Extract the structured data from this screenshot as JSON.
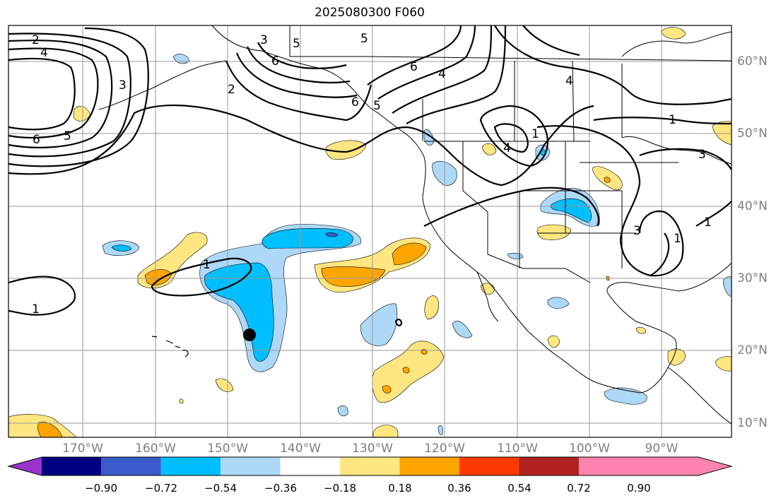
{
  "title": "2025080300 F060",
  "lon_labels": [
    "170°W",
    "160°W",
    "150°W",
    "140°W",
    "130°W",
    "120°W",
    "110°W",
    "100°W",
    "90°W"
  ],
  "lat_labels": [
    "60°N",
    "50°N",
    "40°N",
    "30°N",
    "20°N",
    "10°N"
  ],
  "colorbar": {
    "ticks": [
      "−0.90",
      "−0.72",
      "−0.54",
      "−0.36",
      "−0.18",
      "0.18",
      "0.36",
      "0.54",
      "0.72",
      "0.90"
    ],
    "colors": [
      "#9933cc",
      "#000080",
      "#3a5bcc",
      "#00bfff",
      "#add8f7",
      "#ffffff",
      "#ffe680",
      "#ffa500",
      "#ff3a00",
      "#b22222",
      "#ff85b0"
    ]
  },
  "contour_labels": [
    "2",
    "4",
    "6",
    "5",
    "3",
    "2",
    "3",
    "5",
    "6",
    "6",
    "4",
    "5",
    "4",
    "1",
    "1",
    "3",
    "3",
    "1",
    "1",
    "1",
    "6",
    "5",
    "1",
    "4"
  ],
  "colors": {
    "fill_orange": "#ffa500",
    "fill_yellow": "#ffe680",
    "fill_lightblue": "#add8f7",
    "fill_blue": "#00bfff",
    "fill_darkblue": "#3a5bcc"
  }
}
